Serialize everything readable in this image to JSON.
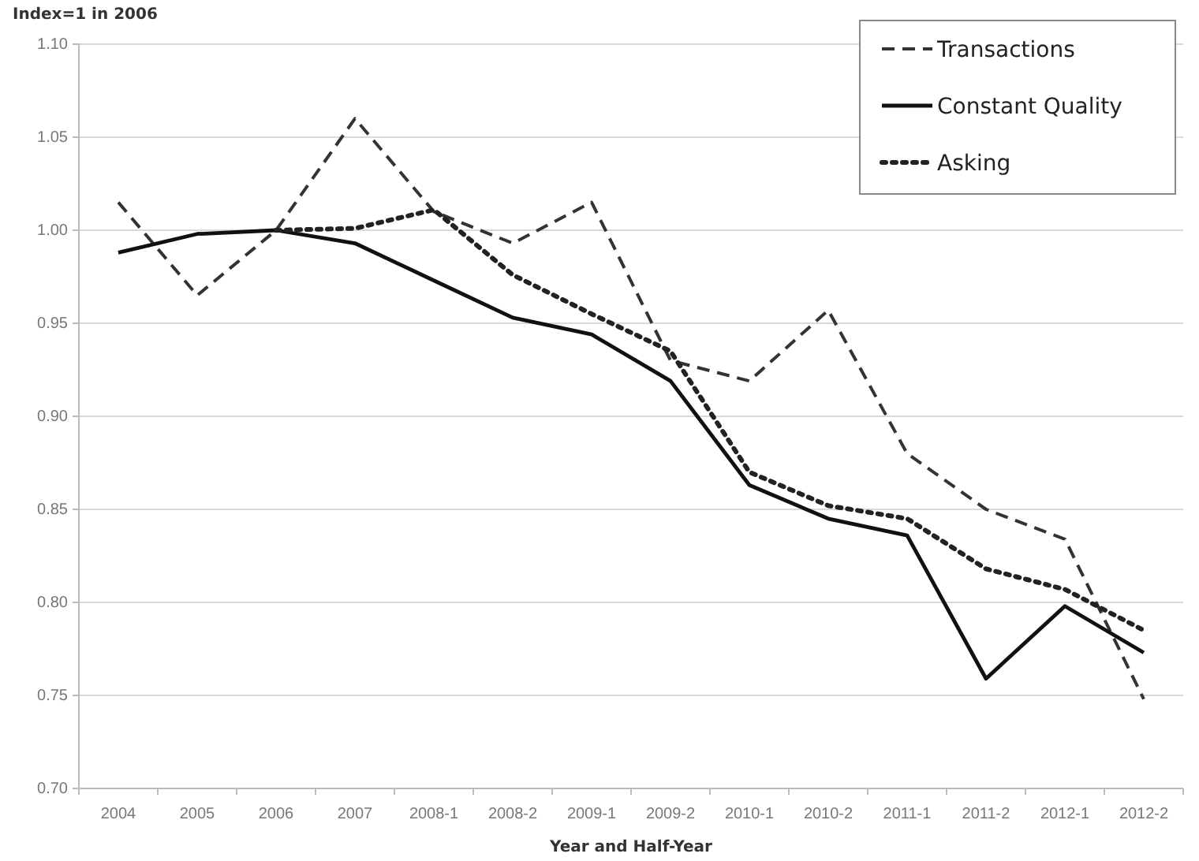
{
  "chart_data": {
    "type": "line",
    "ylabel": "Index=1 in 2006",
    "xlabel": "Year and Half-Year",
    "categories": [
      "2004",
      "2005",
      "2006",
      "2007",
      "2008-1",
      "2008-2",
      "2009-1",
      "2009-2",
      "2010-1",
      "2010-2",
      "2011-1",
      "2011-2",
      "2012-1",
      "2012-2"
    ],
    "series": [
      {
        "name": "Transactions",
        "color": "#333333",
        "line_style": "dashed",
        "values": [
          1.015,
          0.965,
          1.0,
          1.06,
          1.01,
          0.993,
          1.015,
          0.93,
          0.919,
          0.957,
          0.88,
          0.85,
          0.834,
          0.748
        ]
      },
      {
        "name": "Constant Quality",
        "color": "#111111",
        "line_style": "solid",
        "values": [
          0.988,
          0.998,
          1.0,
          0.993,
          0.973,
          0.953,
          0.944,
          0.919,
          0.863,
          0.845,
          0.836,
          0.759,
          0.798,
          0.773
        ]
      },
      {
        "name": "Asking",
        "color": "#222222",
        "line_style": "dotted",
        "values": [
          null,
          null,
          1.0,
          1.001,
          1.011,
          0.976,
          0.955,
          0.935,
          0.87,
          0.852,
          0.845,
          0.818,
          0.807,
          0.785
        ]
      }
    ],
    "ylim": [
      0.7,
      1.1
    ],
    "yticks": [
      {
        "value": 0.7,
        "label": "0.70"
      },
      {
        "value": 0.75,
        "label": "0.75"
      },
      {
        "value": 0.8,
        "label": "0.80"
      },
      {
        "value": 0.85,
        "label": "0.85"
      },
      {
        "value": 0.9,
        "label": "0.90"
      },
      {
        "value": 0.95,
        "label": "0.95"
      },
      {
        "value": 1.0,
        "label": "1.00"
      },
      {
        "value": 1.05,
        "label": "1.05"
      },
      {
        "value": 1.1,
        "label": "1.10"
      }
    ],
    "grid": "y",
    "legend": "top right"
  }
}
